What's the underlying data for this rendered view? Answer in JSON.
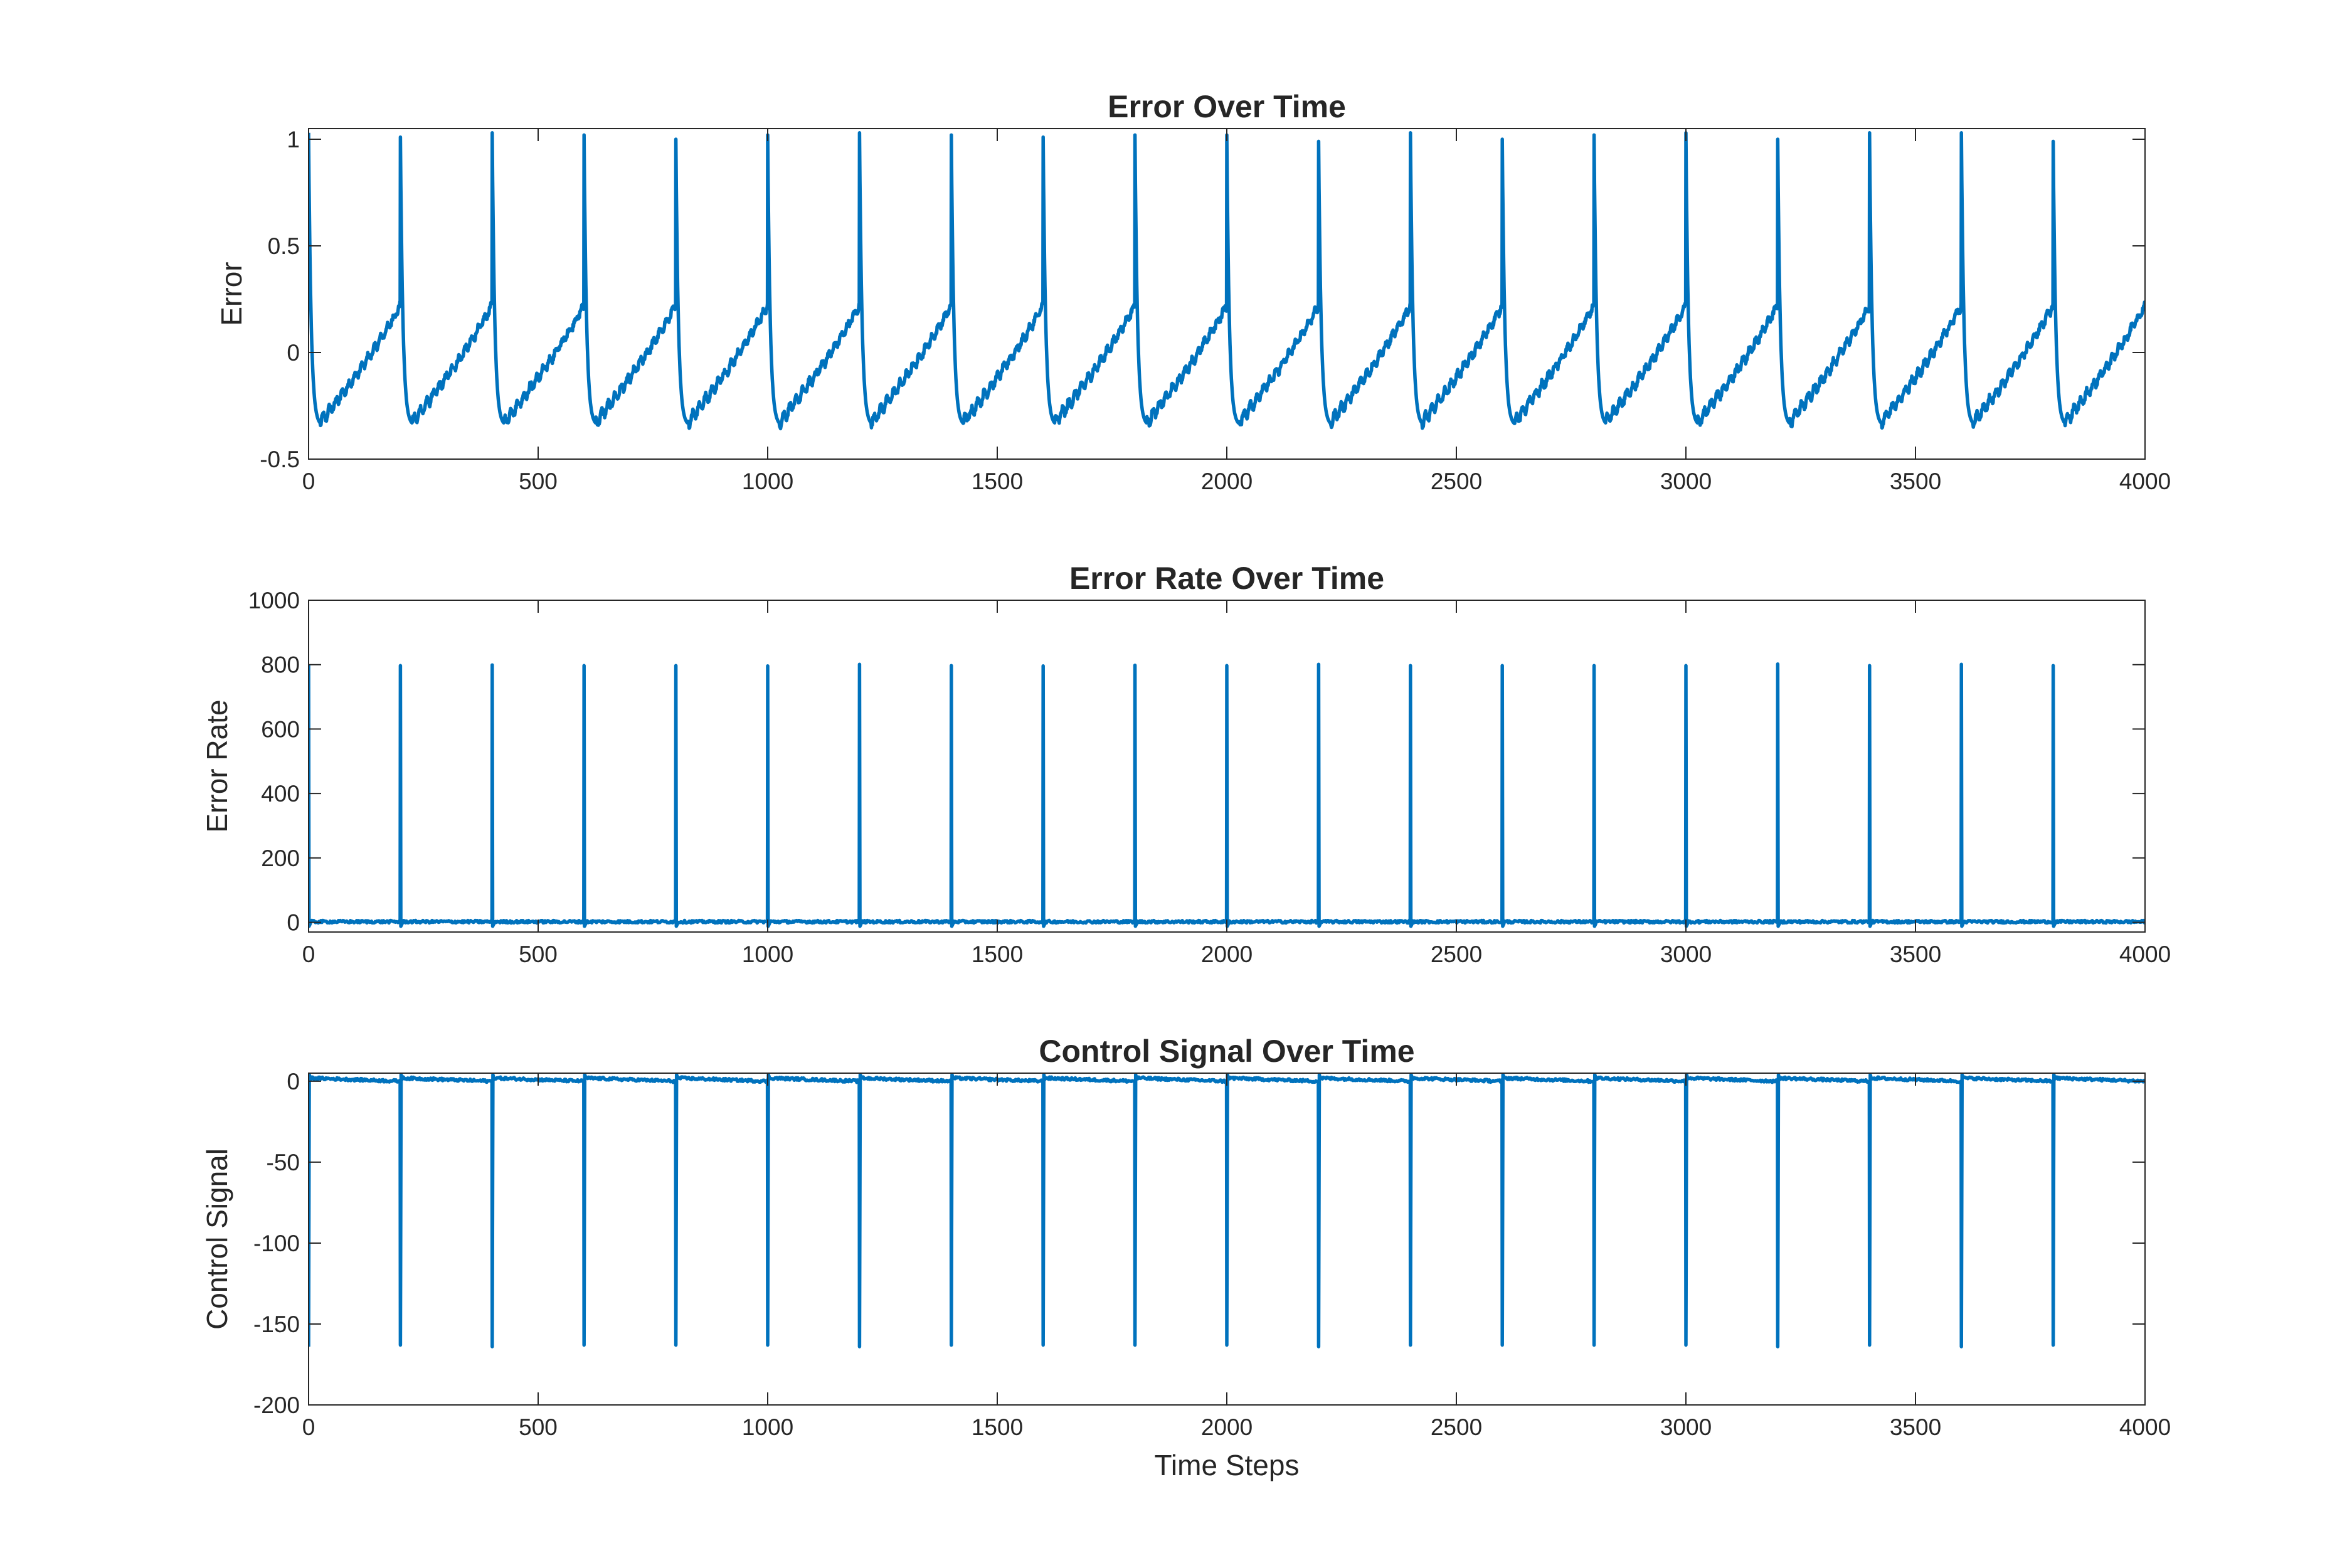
{
  "chart_data": [
    {
      "type": "line",
      "title": "Error Over Time",
      "xlabel": "",
      "ylabel": "Error",
      "xlim": [
        0,
        4000
      ],
      "ylim": [
        -0.5,
        1.05
      ],
      "xticks": [
        0,
        500,
        1000,
        1500,
        2000,
        2500,
        3000,
        3500,
        4000
      ],
      "xtick_labels": [
        "0",
        "500",
        "1000",
        "1500",
        "2000",
        "2500",
        "3000",
        "3500",
        "4000"
      ],
      "yticks": [
        -0.5,
        0,
        0.5,
        1
      ],
      "ytick_labels": [
        "-0.5",
        "0",
        "0.5",
        "1"
      ],
      "grid": false,
      "line_color": "#0072BD",
      "series": [
        {
          "period": 200,
          "cycle_starts": [
            0,
            200,
            400,
            600,
            800,
            1000,
            1200,
            1400,
            1600,
            1800,
            2000,
            2200,
            2400,
            2600,
            2800,
            3000,
            3200,
            3400,
            3600,
            3800
          ],
          "cycle_peaks": [
            1.03,
            1.01,
            1.03,
            1.02,
            1.0,
            1.02,
            1.03,
            1.02,
            1.01,
            1.02,
            1.02,
            0.99,
            1.03,
            1.0,
            1.02,
            1.03,
            1.0,
            1.03,
            1.03,
            0.99
          ],
          "cycle_minimum": -0.33,
          "cycle_end_value": 0.22
        }
      ]
    },
    {
      "type": "line",
      "title": "Error Rate Over Time",
      "xlabel": "",
      "ylabel": "Error Rate",
      "xlim": [
        0,
        4000
      ],
      "ylim": [
        -30,
        1000
      ],
      "xticks": [
        0,
        500,
        1000,
        1500,
        2000,
        2500,
        3000,
        3500,
        4000
      ],
      "xtick_labels": [
        "0",
        "500",
        "1000",
        "1500",
        "2000",
        "2500",
        "3000",
        "3500",
        "4000"
      ],
      "yticks": [
        0,
        200,
        400,
        600,
        800,
        1000
      ],
      "ytick_labels": [
        "0",
        "200",
        "400",
        "600",
        "800",
        "1000"
      ],
      "grid": false,
      "line_color": "#0072BD",
      "series": [
        {
          "baseline": 2,
          "spike_positions": [
            0,
            200,
            400,
            600,
            800,
            1000,
            1200,
            1400,
            1600,
            1800,
            2000,
            2200,
            2400,
            2600,
            2800,
            3000,
            3200,
            3400,
            3600,
            3800
          ],
          "spike_values": [
            800,
            797,
            799,
            797,
            797,
            796,
            801,
            797,
            796,
            798,
            797,
            801,
            797,
            797,
            797,
            797,
            802,
            797,
            801,
            797
          ],
          "spike_undershoot": -12
        }
      ]
    },
    {
      "type": "line",
      "title": "Control Signal Over Time",
      "xlabel": "Time Steps",
      "ylabel": "Control Signal",
      "xlim": [
        0,
        4000
      ],
      "ylim": [
        -200,
        5
      ],
      "xticks": [
        0,
        500,
        1000,
        1500,
        2000,
        2500,
        3000,
        3500,
        4000
      ],
      "xtick_labels": [
        "0",
        "500",
        "1000",
        "1500",
        "2000",
        "2500",
        "3000",
        "3500",
        "4000"
      ],
      "yticks": [
        -200,
        -150,
        -100,
        -50,
        0
      ],
      "ytick_labels": [
        "-200",
        "-150",
        "-100",
        "-50",
        "0"
      ],
      "grid": false,
      "line_color": "#0072BD",
      "series": [
        {
          "baseline_start": 2,
          "baseline_end": 0,
          "spike_positions": [
            0,
            200,
            400,
            600,
            800,
            1000,
            1200,
            1400,
            1600,
            1800,
            2000,
            2200,
            2400,
            2600,
            2800,
            3000,
            3200,
            3400,
            3600,
            3800
          ],
          "spike_values": [
            -164,
            -163,
            -164,
            -163,
            -163,
            -163,
            -164,
            -163,
            -163,
            -163,
            -163,
            -164,
            -163,
            -163,
            -163,
            -163,
            -164,
            -163,
            -164,
            -163
          ]
        }
      ]
    }
  ]
}
